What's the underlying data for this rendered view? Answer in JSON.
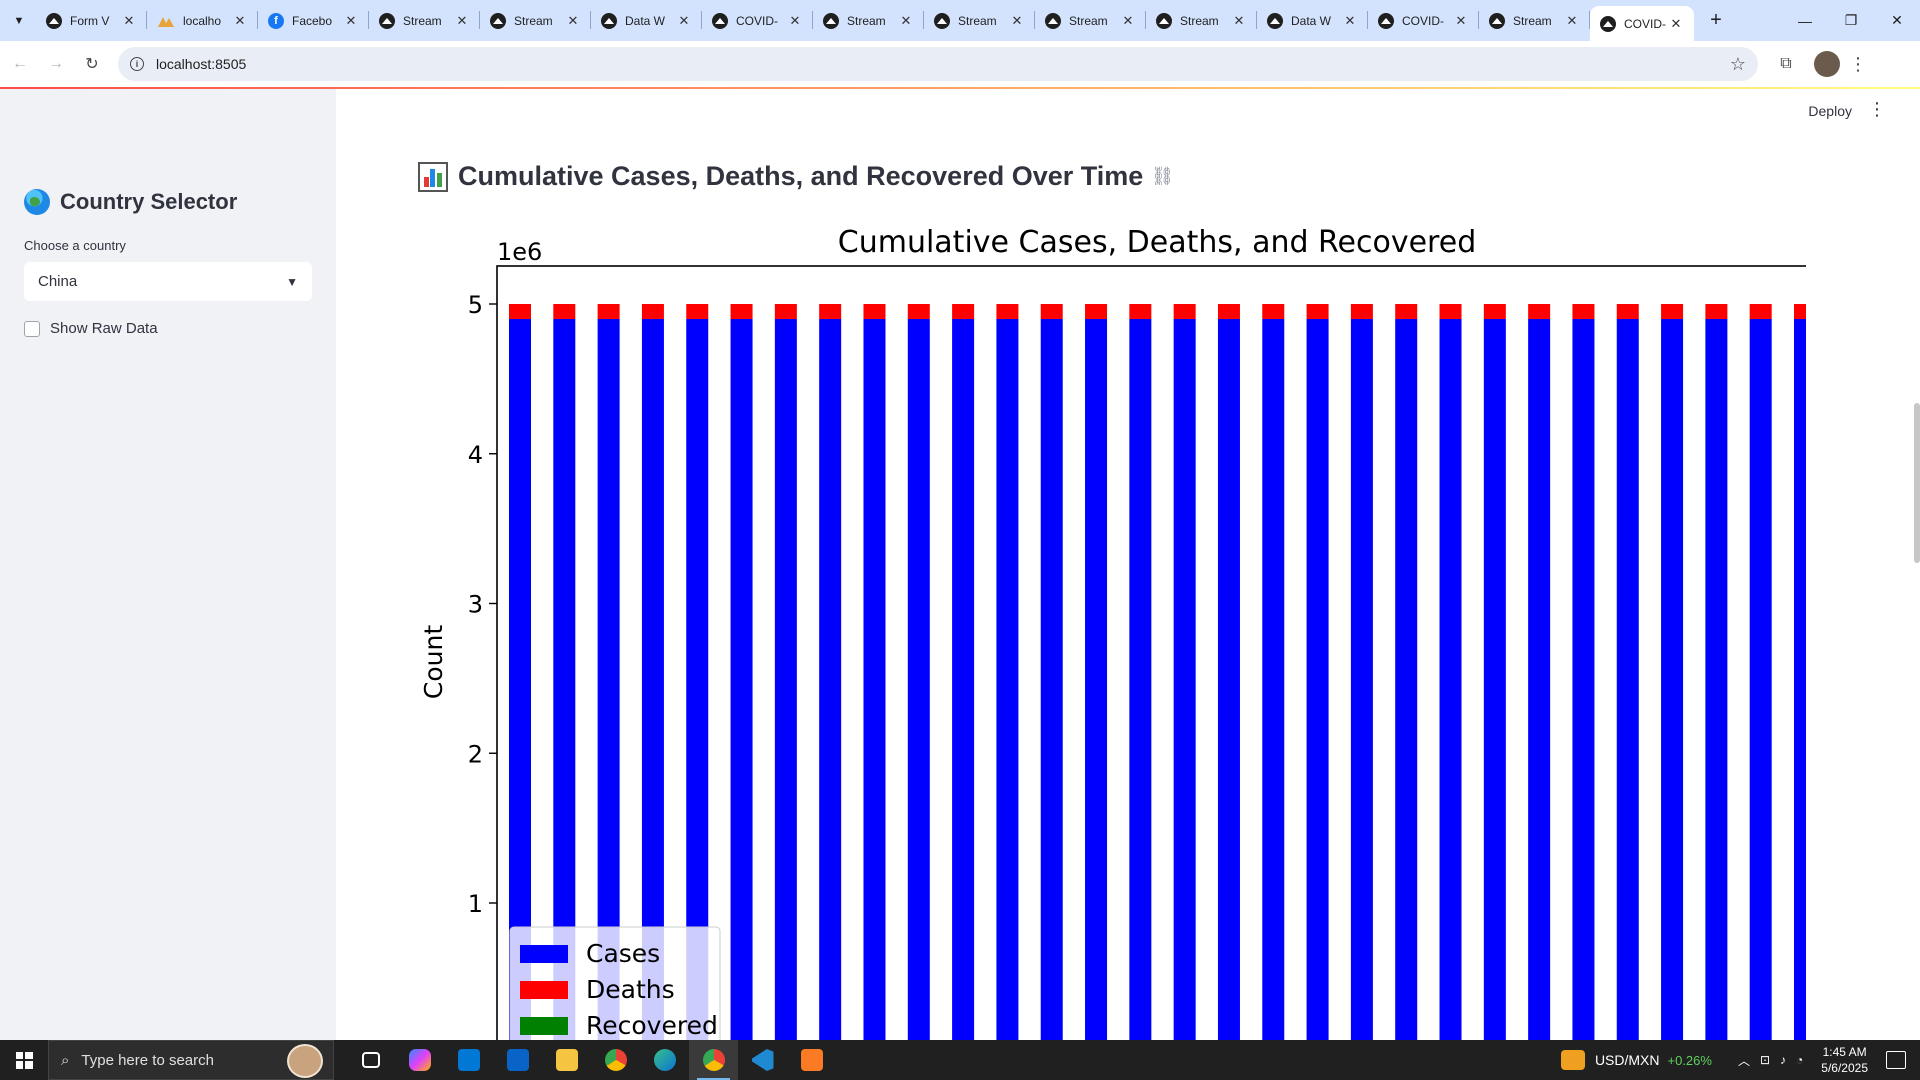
{
  "browser": {
    "tabs": [
      {
        "title": "Form V",
        "icon": "github-icon",
        "active": false
      },
      {
        "title": "localho",
        "icon": "warning-icon",
        "active": false
      },
      {
        "title": "Facebo",
        "icon": "facebook-icon",
        "active": false
      },
      {
        "title": "Stream",
        "icon": "streamlit-icon",
        "active": false
      },
      {
        "title": "Stream",
        "icon": "streamlit-icon",
        "active": false
      },
      {
        "title": "Data W",
        "icon": "streamlit-icon",
        "active": false
      },
      {
        "title": "COVID-",
        "icon": "streamlit-icon",
        "active": false
      },
      {
        "title": "Stream",
        "icon": "streamlit-icon",
        "active": false
      },
      {
        "title": "Stream",
        "icon": "streamlit-icon",
        "active": false
      },
      {
        "title": "Stream",
        "icon": "streamlit-icon",
        "active": false
      },
      {
        "title": "Stream",
        "icon": "streamlit-icon",
        "active": false
      },
      {
        "title": "Data W",
        "icon": "streamlit-icon",
        "active": false
      },
      {
        "title": "COVID-",
        "icon": "streamlit-icon",
        "active": false
      },
      {
        "title": "Stream",
        "icon": "streamlit-icon",
        "active": false
      },
      {
        "title": "COVID-",
        "icon": "streamlit-icon",
        "active": true
      }
    ],
    "url": "localhost:8505"
  },
  "app": {
    "deploy_label": "Deploy",
    "sidebar": {
      "title": "Country Selector",
      "select_label": "Choose a country",
      "select_value": "China",
      "checkbox_label": "Show Raw Data",
      "checkbox_checked": false
    },
    "heading": "Cumulative Cases, Deaths, and Recovered Over Time"
  },
  "chart_data": {
    "type": "bar",
    "stacked": true,
    "title": "Cumulative Cases, Deaths, and Recovered",
    "xlabel": "",
    "ylabel": "Count",
    "y_offset_label": "1e6",
    "y_ticks": [
      1,
      2,
      3,
      4,
      5
    ],
    "ylim": [
      0,
      5.25
    ],
    "bar_count": 30,
    "series": [
      {
        "name": "Cases",
        "color": "#0000ff",
        "value_millions": 4.9
      },
      {
        "name": "Deaths",
        "color": "#ff0000",
        "value_millions": 0.1
      },
      {
        "name": "Recovered",
        "color": "#008000",
        "value_millions": 0
      }
    ],
    "legend_position": "lower-left",
    "grid": false
  },
  "taskbar": {
    "search_placeholder": "Type here to search",
    "stock_name": "USD/MXN",
    "stock_change": "+0.26%",
    "time": "1:45 AM",
    "date": "5/6/2025"
  }
}
